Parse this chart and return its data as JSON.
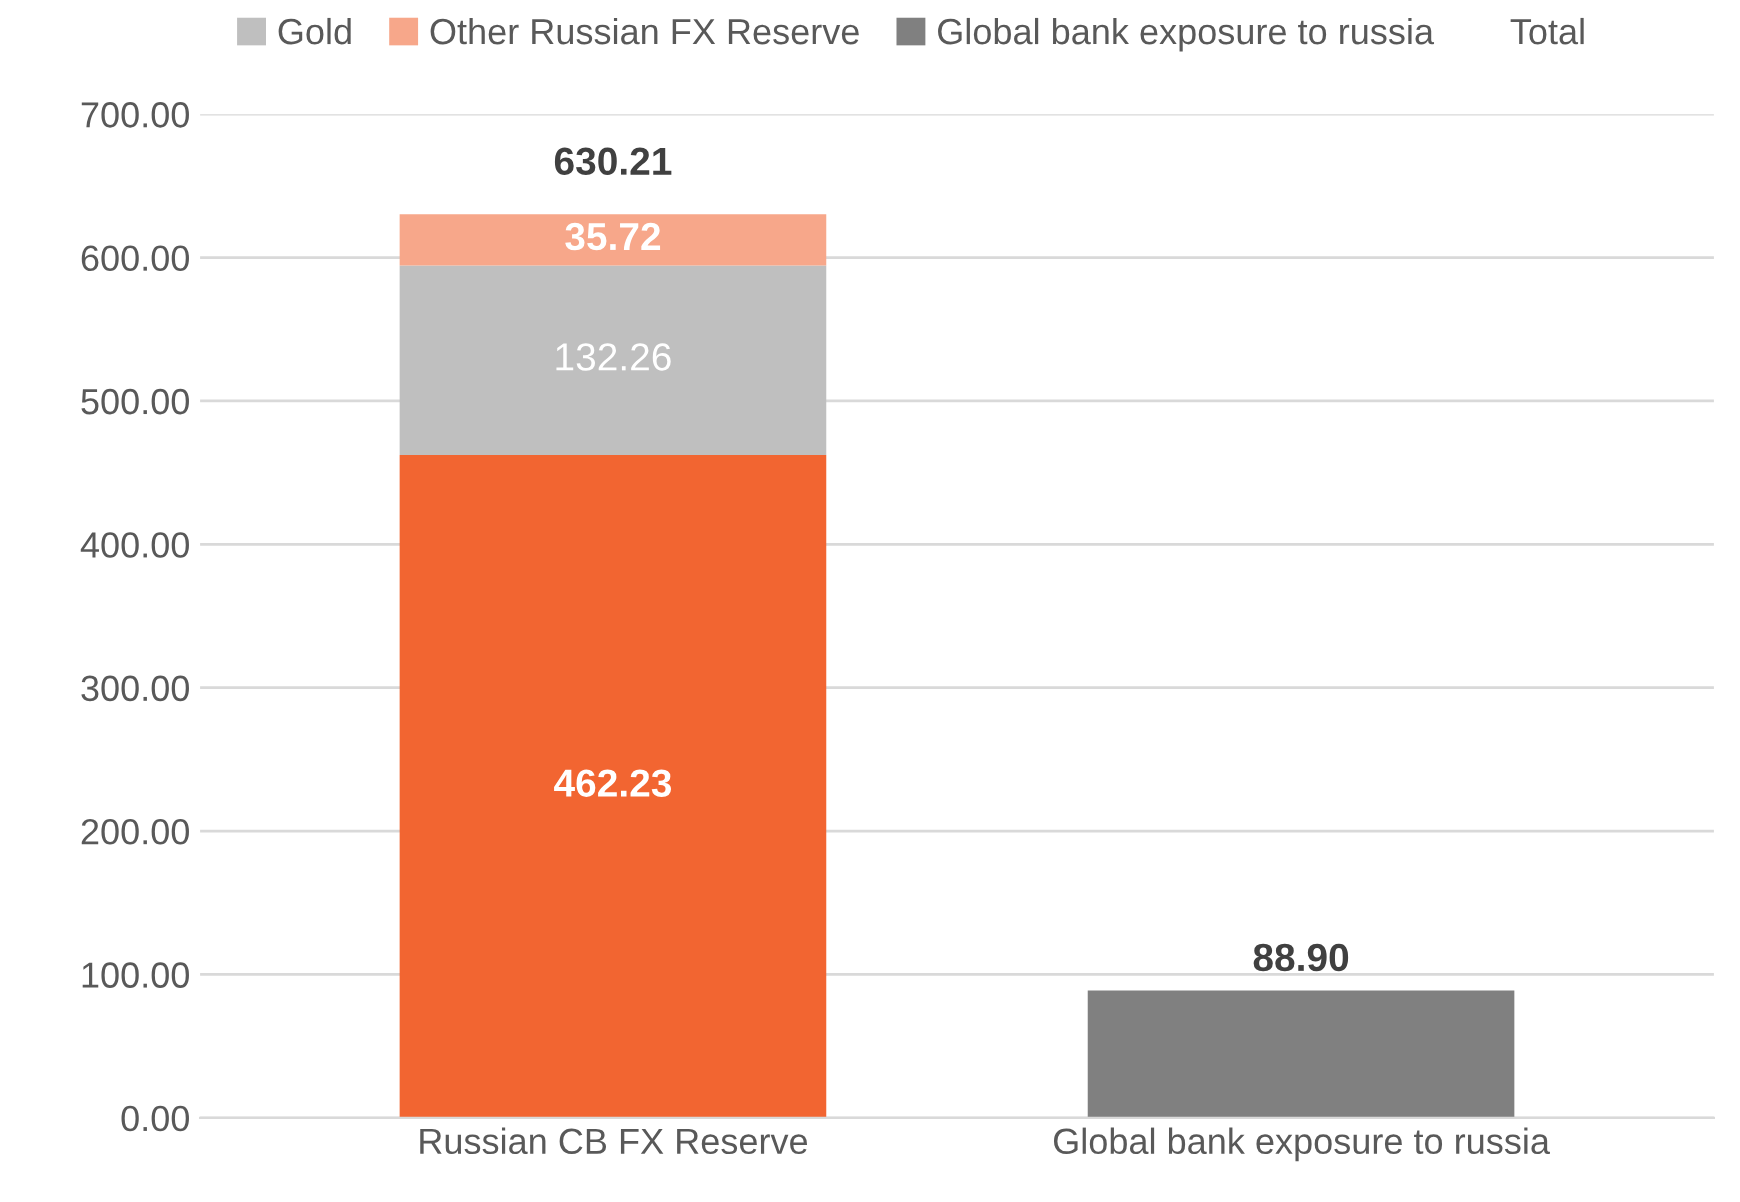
{
  "chart_data": {
    "type": "bar",
    "stacked": true,
    "categories": [
      "Russian CB FX Reserve",
      "Global bank exposure to russia"
    ],
    "series": [
      {
        "color": "#f26531",
        "values": [
          462.23,
          null
        ],
        "value_labels": [
          "462.23",
          null
        ]
      },
      {
        "name": "Gold",
        "color": "#bfbfbf",
        "values": [
          132.26,
          null
        ],
        "value_labels": [
          "132.26",
          null
        ]
      },
      {
        "name": "Other Russian FX Reserve",
        "color": "#f7a78a",
        "values": [
          35.72,
          null
        ],
        "value_labels": [
          "35.72",
          null
        ]
      },
      {
        "name": "Global bank exposure to russia",
        "color": "#808080",
        "values": [
          null,
          88.9
        ],
        "value_labels": [
          null,
          "88.90"
        ]
      },
      {
        "name": "Total",
        "color": null,
        "values": [
          null,
          null
        ]
      }
    ],
    "totals": [
      "630.21",
      null
    ],
    "ylim": [
      0,
      700
    ],
    "yticks": [
      {
        "value": 0,
        "label": "0.00"
      },
      {
        "value": 100,
        "label": "100.00"
      },
      {
        "value": 200,
        "label": "200.00"
      },
      {
        "value": 300,
        "label": "300.00"
      },
      {
        "value": 400,
        "label": "400.00"
      },
      {
        "value": 500,
        "label": "500.00"
      },
      {
        "value": 600,
        "label": "600.00"
      },
      {
        "value": 700,
        "label": "700.00"
      }
    ],
    "grid": "y",
    "legend": "top"
  }
}
